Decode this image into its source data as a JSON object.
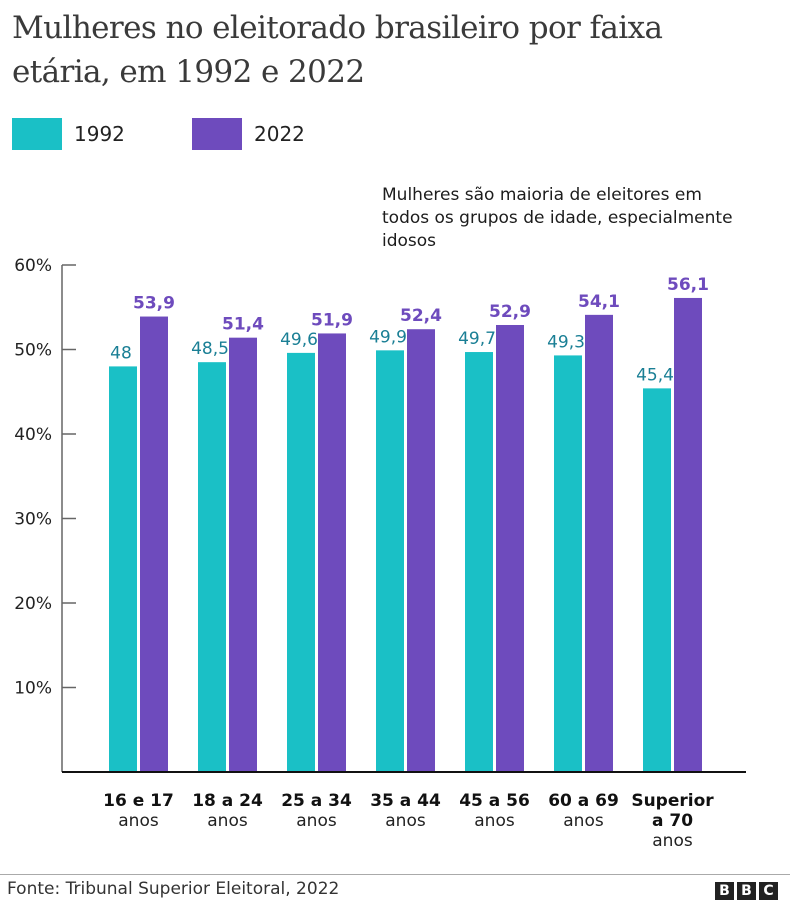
{
  "title": "Mulheres no eleitorado brasileiro por faixa etária, em 1992 e 2022",
  "annotation": "Mulheres são maioria de eleitores em todos os grupos de idade, especialmente idosos",
  "source": "Fonte: Tribunal Superior Eleitoral, 2022",
  "logo": [
    "B",
    "B",
    "C"
  ],
  "colors": {
    "series_1992": "#1ac0c6",
    "series_2022": "#6e4bbd",
    "label_1992": "#1a7f95",
    "label_2022": "#6e4bbd"
  },
  "chart_data": {
    "type": "bar",
    "title": "Mulheres no eleitorado brasileiro por faixa etária, em 1992 e 2022",
    "xlabel": "",
    "ylabel": "",
    "ylim": [
      0,
      60
    ],
    "yticks": [
      10,
      20,
      30,
      40,
      50,
      60
    ],
    "ytick_labels": [
      "10%",
      "20%",
      "30%",
      "40%",
      "50%",
      "60%"
    ],
    "grid": false,
    "legend_position": "top-left",
    "categories": [
      {
        "line1": "16 e 17",
        "line2": "anos"
      },
      {
        "line1": "18 a 24",
        "line2": "anos"
      },
      {
        "line1": "25 a 34",
        "line2": "anos"
      },
      {
        "line1": "35 a 44",
        "line2": "anos"
      },
      {
        "line1": "45 a 56",
        "line2": "anos"
      },
      {
        "line1": "60 a 69",
        "line2": "anos"
      },
      {
        "line1": "Superior",
        "line1b": "a 70",
        "line2": "anos"
      }
    ],
    "series": [
      {
        "name": "1992",
        "values": [
          48,
          48.5,
          49.6,
          49.9,
          49.7,
          49.3,
          45.4
        ],
        "labels": [
          "48",
          "48,5",
          "49,6",
          "49,9",
          "49,7",
          "49,3",
          "45,4"
        ]
      },
      {
        "name": "2022",
        "values": [
          53.9,
          51.4,
          51.9,
          52.4,
          52.9,
          54.1,
          56.1
        ],
        "labels": [
          "53,9",
          "51,4",
          "51,9",
          "52,4",
          "52,9",
          "54,1",
          "56,1"
        ]
      }
    ],
    "annotation": "Mulheres são maioria de eleitores em todos os grupos de idade, especialmente idosos"
  }
}
